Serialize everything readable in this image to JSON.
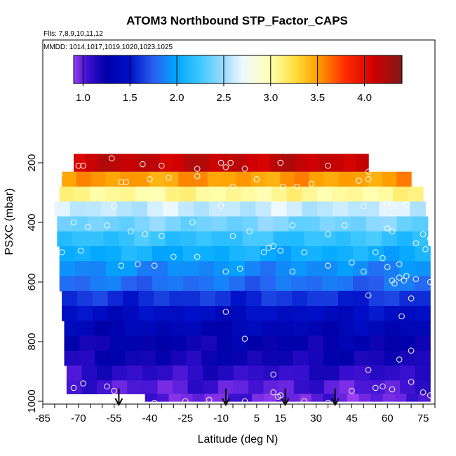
{
  "chart_data": {
    "type": "heatmap",
    "title": "ATOM3 Northbound STP_Factor_CAPS",
    "flights_label": "Flts: 7,8,9,10,11,12",
    "dates_label": "MMDD: 1014,1017,1019,1020,1023,1025",
    "xlabel": "Latitude (deg N)",
    "ylabel": "PSXC (mbar)",
    "xlim": [
      -85,
      80
    ],
    "ylim": [
      1000,
      0
    ],
    "x_ticks": [
      -85,
      -70,
      -55,
      -40,
      -25,
      -10,
      5,
      15,
      30,
      45,
      60,
      75
    ],
    "x_tick_labels": [
      "-85",
      "-70",
      "-55",
      "-40",
      "-25",
      "-10",
      "5",
      "15",
      "30",
      "45",
      "60",
      "75"
    ],
    "y_ticks": [
      200,
      400,
      600,
      800,
      1000
    ],
    "y_tick_labels": [
      "200",
      "400",
      "600",
      "800",
      "1000"
    ],
    "colorbar": {
      "range": [
        0.9,
        4.4
      ],
      "ticks": [
        1.0,
        1.5,
        2.0,
        2.5,
        3.0,
        3.5,
        4.0
      ],
      "tick_labels": [
        "1.0",
        "1.5",
        "2.0",
        "2.5",
        "3.0",
        "3.5",
        "4.0"
      ],
      "stops": [
        {
          "v": 0.9,
          "c": "#9a3cf0"
        },
        {
          "v": 1.05,
          "c": "#3a10d0"
        },
        {
          "v": 1.25,
          "c": "#0000a8"
        },
        {
          "v": 1.5,
          "c": "#0010c8"
        },
        {
          "v": 1.75,
          "c": "#2a60f0"
        },
        {
          "v": 2.0,
          "c": "#00a8ff"
        },
        {
          "v": 2.25,
          "c": "#40c8ff"
        },
        {
          "v": 2.5,
          "c": "#9adcff"
        },
        {
          "v": 2.7,
          "c": "#eef8ff"
        },
        {
          "v": 3.0,
          "c": "#ffffb0"
        },
        {
          "v": 3.25,
          "c": "#ffe040"
        },
        {
          "v": 3.5,
          "c": "#ffa000"
        },
        {
          "v": 3.8,
          "c": "#ff2a00"
        },
        {
          "v": 4.1,
          "c": "#d00000"
        },
        {
          "v": 4.4,
          "c": "#801818"
        }
      ]
    },
    "layers": [
      {
        "p": [
          170,
          230
        ],
        "lat": [
          -72,
          52
        ],
        "v": 4.15
      },
      {
        "p": [
          230,
          280
        ],
        "lat": [
          -77,
          70
        ],
        "v": 3.5
      },
      {
        "p": [
          280,
          330
        ],
        "lat": [
          -78,
          75
        ],
        "v": 3.05
      },
      {
        "p": [
          330,
          380
        ],
        "lat": [
          -80,
          76
        ],
        "v": 2.6
      },
      {
        "p": [
          380,
          430
        ],
        "lat": [
          -79,
          77
        ],
        "v": 2.4
      },
      {
        "p": [
          430,
          480
        ],
        "lat": [
          -79,
          77
        ],
        "v": 2.2
      },
      {
        "p": [
          480,
          530
        ],
        "lat": [
          -78,
          78
        ],
        "v": 2.05
      },
      {
        "p": [
          530,
          580
        ],
        "lat": [
          -78,
          78
        ],
        "v": 1.9
      },
      {
        "p": [
          580,
          630
        ],
        "lat": [
          -78,
          78
        ],
        "v": 1.8
      },
      {
        "p": [
          630,
          680
        ],
        "lat": [
          -77,
          78
        ],
        "v": 1.6
      },
      {
        "p": [
          680,
          730
        ],
        "lat": [
          -77,
          78
        ],
        "v": 1.45
      },
      {
        "p": [
          730,
          780
        ],
        "lat": [
          -76,
          78
        ],
        "v": 1.35
      },
      {
        "p": [
          780,
          830
        ],
        "lat": [
          -76,
          78
        ],
        "v": 1.25
      },
      {
        "p": [
          830,
          880
        ],
        "lat": [
          -76,
          78
        ],
        "v": 1.2
      },
      {
        "p": [
          880,
          930
        ],
        "lat": [
          -75,
          78
        ],
        "v": 1.1
      },
      {
        "p": [
          930,
          975
        ],
        "lat": [
          -75,
          78
        ],
        "v": 1.02
      },
      {
        "p": [
          975,
          1000
        ],
        "lat": [
          -42,
          78
        ],
        "v": 0.98
      }
    ],
    "flight_tracks_lat": [
      -53,
      -8,
      17,
      38
    ],
    "sample_points": [
      [
        -56,
        185
      ],
      [
        -70,
        210
      ],
      [
        -68,
        210
      ],
      [
        -43,
        205
      ],
      [
        -35,
        210
      ],
      [
        -20,
        220
      ],
      [
        -10,
        200
      ],
      [
        -8,
        215
      ],
      [
        -6,
        200
      ],
      [
        0,
        220
      ],
      [
        15,
        200
      ],
      [
        35,
        210
      ],
      [
        52,
        230
      ],
      [
        -78,
        240
      ],
      [
        -52,
        265
      ],
      [
        -50,
        265
      ],
      [
        -40,
        255
      ],
      [
        -32,
        250
      ],
      [
        -20,
        245
      ],
      [
        -5,
        280
      ],
      [
        5,
        255
      ],
      [
        16,
        280
      ],
      [
        22,
        280
      ],
      [
        28,
        270
      ],
      [
        48,
        260
      ],
      [
        52,
        255
      ],
      [
        -82,
        330
      ],
      [
        -55,
        345
      ],
      [
        -10,
        345
      ],
      [
        50,
        345
      ],
      [
        60,
        335
      ],
      [
        62,
        345
      ],
      [
        68,
        340
      ],
      [
        -72,
        400
      ],
      [
        -66,
        415
      ],
      [
        -58,
        410
      ],
      [
        -48,
        430
      ],
      [
        -42,
        440
      ],
      [
        -35,
        445
      ],
      [
        -22,
        400
      ],
      [
        -5,
        445
      ],
      [
        2,
        430
      ],
      [
        20,
        410
      ],
      [
        35,
        440
      ],
      [
        42,
        410
      ],
      [
        60,
        420
      ],
      [
        62,
        430
      ],
      [
        75,
        440
      ],
      [
        78,
        455
      ],
      [
        -77,
        500
      ],
      [
        -69,
        495
      ],
      [
        -52,
        545
      ],
      [
        -45,
        540
      ],
      [
        -38,
        545
      ],
      [
        -30,
        515
      ],
      [
        -20,
        515
      ],
      [
        -8,
        565
      ],
      [
        -2,
        555
      ],
      [
        8,
        500
      ],
      [
        10,
        485
      ],
      [
        12,
        480
      ],
      [
        15,
        495
      ],
      [
        20,
        565
      ],
      [
        25,
        500
      ],
      [
        35,
        545
      ],
      [
        45,
        535
      ],
      [
        50,
        565
      ],
      [
        55,
        500
      ],
      [
        58,
        520
      ],
      [
        60,
        550
      ],
      [
        65,
        540
      ],
      [
        68,
        580
      ],
      [
        72,
        470
      ],
      [
        76,
        490
      ],
      [
        52,
        645
      ],
      [
        62,
        595
      ],
      [
        63,
        605
      ],
      [
        65,
        585
      ],
      [
        67,
        595
      ],
      [
        68,
        580
      ],
      [
        70,
        655
      ],
      [
        72,
        590
      ],
      [
        78,
        600
      ],
      [
        -8,
        700
      ],
      [
        0,
        790
      ],
      [
        66,
        715
      ],
      [
        70,
        830
      ],
      [
        52,
        895
      ],
      [
        65,
        860
      ],
      [
        -72,
        955
      ],
      [
        -68,
        940
      ],
      [
        -58,
        950
      ],
      [
        -55,
        965
      ],
      [
        -38,
        1005
      ],
      [
        -25,
        1000
      ],
      [
        -15,
        995
      ],
      [
        0,
        1000
      ],
      [
        12,
        910
      ],
      [
        12,
        970
      ],
      [
        15,
        980
      ],
      [
        14,
        985
      ],
      [
        25,
        1000
      ],
      [
        35,
        1005
      ],
      [
        45,
        965
      ],
      [
        55,
        955
      ],
      [
        58,
        950
      ],
      [
        62,
        960
      ],
      [
        70,
        935
      ],
      [
        75,
        970
      ],
      [
        78,
        980
      ]
    ]
  }
}
